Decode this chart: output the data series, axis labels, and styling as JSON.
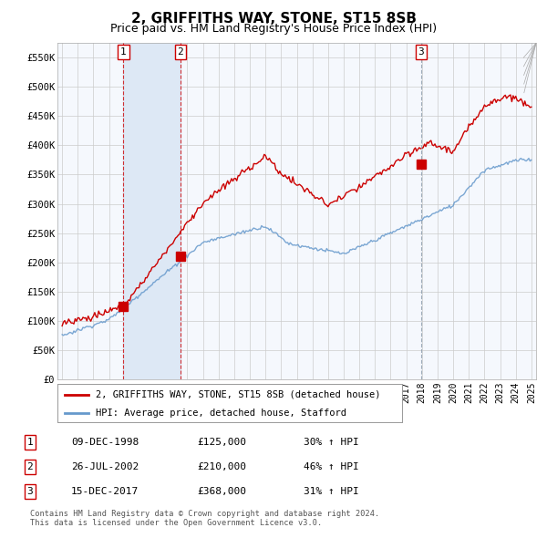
{
  "title": "2, GRIFFITHS WAY, STONE, ST15 8SB",
  "subtitle": "Price paid vs. HM Land Registry's House Price Index (HPI)",
  "title_fontsize": 11,
  "subtitle_fontsize": 9,
  "ylim": [
    0,
    575000
  ],
  "yticks": [
    0,
    50000,
    100000,
    150000,
    200000,
    250000,
    300000,
    350000,
    400000,
    450000,
    500000,
    550000
  ],
  "ytick_labels": [
    "£0",
    "£50K",
    "£100K",
    "£150K",
    "£200K",
    "£250K",
    "£300K",
    "£350K",
    "£400K",
    "£450K",
    "£500K",
    "£550K"
  ],
  "hpi_color": "#6699cc",
  "price_color": "#cc0000",
  "vline_color": "#cc0000",
  "vline3_color": "#8899aa",
  "shade_color": "#dde8f5",
  "marker_color": "#cc0000",
  "background_color": "#ffffff",
  "chart_bg": "#f5f8fd",
  "grid_color": "#cccccc",
  "legend_entry1": "2, GRIFFITHS WAY, STONE, ST15 8SB (detached house)",
  "legend_entry2": "HPI: Average price, detached house, Stafford",
  "transaction1_label": "1",
  "transaction1_date": "09-DEC-1998",
  "transaction1_price": "£125,000",
  "transaction1_hpi": "30% ↑ HPI",
  "transaction1_year": 1998.92,
  "transaction1_value": 125000,
  "transaction2_label": "2",
  "transaction2_date": "26-JUL-2002",
  "transaction2_price": "£210,000",
  "transaction2_hpi": "46% ↑ HPI",
  "transaction2_year": 2002.56,
  "transaction2_value": 210000,
  "transaction3_label": "3",
  "transaction3_date": "15-DEC-2017",
  "transaction3_price": "£368,000",
  "transaction3_hpi": "31% ↑ HPI",
  "transaction3_year": 2017.96,
  "transaction3_value": 368000,
  "footnote1": "Contains HM Land Registry data © Crown copyright and database right 2024.",
  "footnote2": "This data is licensed under the Open Government Licence v3.0."
}
